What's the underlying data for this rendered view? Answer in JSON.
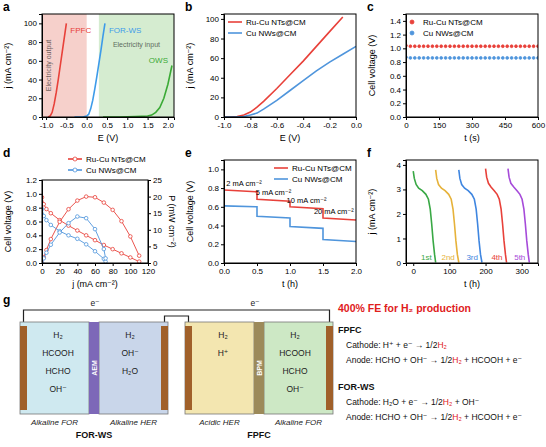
{
  "chart_data": [
    {
      "type": "line",
      "panel": "a",
      "x_label": "E (V)",
      "y_label": "j (mA cm⁻²)",
      "xlim": [
        -1.1,
        2.15
      ],
      "ylim": [
        0,
        110
      ],
      "xticks": [
        {
          "value": -1,
          "label": "-1.0"
        },
        -0.5,
        {
          "value": 0,
          "label": "0.0"
        },
        0.5,
        {
          "value": 1,
          "label": "1.0"
        },
        1.5,
        {
          "value": 2,
          "label": "2.0"
        }
      ],
      "yticks": [
        0,
        20,
        40,
        60,
        80,
        100
      ],
      "regions": [
        {
          "label": "Electricity output",
          "x": [
            -1.1,
            0.0
          ],
          "color": "#f6d0cb"
        },
        {
          "label": "Electricity input",
          "x": [
            0.3,
            2.15
          ],
          "color": "#d5ecd0"
        }
      ],
      "series": [
        {
          "name": "FPFC",
          "color": "#e8413a",
          "x": [
            -0.95,
            -0.9,
            -0.85,
            -0.8,
            -0.75,
            -0.7,
            -0.65,
            -0.6,
            -0.55,
            -0.5
          ],
          "values": [
            0,
            1,
            5,
            14,
            26,
            40,
            55,
            70,
            85,
            100
          ]
        },
        {
          "name": "FOR-WS",
          "color": "#3d9be9",
          "x": [
            -0.3,
            -0.1,
            0.0,
            0.05,
            0.1,
            0.15,
            0.2,
            0.25,
            0.3,
            0.35,
            0.4,
            0.45
          ],
          "values": [
            0,
            0,
            1,
            3,
            9,
            18,
            30,
            43,
            57,
            71,
            86,
            100
          ]
        },
        {
          "name": "OWS",
          "color": "#3aaa35",
          "x": [
            0.4,
            0.8,
            1.2,
            1.5,
            1.6,
            1.7,
            1.8,
            1.9,
            2.0,
            2.1
          ],
          "values": [
            0,
            0,
            0.5,
            1,
            2,
            5,
            10,
            20,
            35,
            55
          ]
        }
      ]
    },
    {
      "type": "line",
      "panel": "b",
      "x_label": "E (V)",
      "y_label": "j (mA cm⁻²)",
      "legend": "upper left",
      "xlim": [
        -1.0,
        0.0
      ],
      "ylim": [
        0,
        105
      ],
      "xticks": [
        {
          "value": -1,
          "label": "-1.0"
        },
        -0.8,
        -0.6,
        -0.4,
        -0.2,
        {
          "value": 0,
          "label": "0.0"
        }
      ],
      "yticks": [
        0,
        20,
        40,
        60,
        80,
        100
      ],
      "series": [
        {
          "name": "Ru-Cu NTs@CM",
          "color": "#e8413a",
          "x": [
            -1.0,
            -0.95,
            -0.9,
            -0.85,
            -0.8,
            -0.75,
            -0.7,
            -0.6,
            -0.5,
            -0.4,
            -0.3,
            -0.2,
            -0.1
          ],
          "values": [
            0,
            0,
            0.5,
            2,
            5,
            10,
            16,
            29,
            43,
            57,
            72,
            87,
            102
          ]
        },
        {
          "name": "Cu NWs@CM",
          "color": "#4f95dc",
          "x": [
            -1.0,
            -0.9,
            -0.85,
            -0.8,
            -0.75,
            -0.7,
            -0.6,
            -0.5,
            -0.4,
            -0.3,
            -0.2,
            -0.1,
            0.0
          ],
          "values": [
            0,
            0,
            0.5,
            2,
            4,
            8,
            17,
            27,
            37,
            47,
            56,
            64,
            72
          ]
        }
      ]
    },
    {
      "type": "scatter",
      "panel": "c",
      "x_label": "t (s)",
      "y_label": "Cell voltage (V)",
      "legend": "upper left",
      "xlim": [
        0,
        600
      ],
      "ylim": [
        0,
        1.5
      ],
      "xticks": [
        0,
        150,
        300,
        450,
        600
      ],
      "yticks": [
        {
          "value": 0,
          "label": "0.0"
        },
        0.2,
        0.4,
        0.6,
        0.8,
        {
          "value": 1,
          "label": "1.0"
        },
        1.2,
        1.4
      ],
      "series": [
        {
          "name": "Ru-Cu NTs@CM",
          "color": "#e8413a",
          "marker": "dot",
          "x": [
            0,
            20,
            40,
            60,
            80,
            100,
            120,
            140,
            160,
            180,
            200,
            220,
            240,
            260,
            280,
            300,
            320,
            340,
            360,
            380,
            400,
            420,
            440,
            460,
            480,
            500,
            520,
            540,
            560,
            580,
            600
          ],
          "values": [
            1.04,
            1.03,
            1.03,
            1.03,
            1.03,
            1.03,
            1.03,
            1.03,
            1.03,
            1.03,
            1.03,
            1.03,
            1.03,
            1.03,
            1.03,
            1.03,
            1.03,
            1.03,
            1.03,
            1.03,
            1.03,
            1.03,
            1.03,
            1.03,
            1.03,
            1.03,
            1.03,
            1.03,
            1.03,
            1.03,
            1.03
          ]
        },
        {
          "name": "Cu NWs@CM",
          "color": "#4f95dc",
          "marker": "dot",
          "x": [
            0,
            20,
            40,
            60,
            80,
            100,
            120,
            140,
            160,
            180,
            200,
            220,
            240,
            260,
            280,
            300,
            320,
            340,
            360,
            380,
            400,
            420,
            440,
            460,
            480,
            500,
            520,
            540,
            560,
            580,
            600
          ],
          "values": [
            0.87,
            0.86,
            0.86,
            0.86,
            0.86,
            0.86,
            0.86,
            0.86,
            0.86,
            0.86,
            0.86,
            0.86,
            0.86,
            0.86,
            0.86,
            0.86,
            0.86,
            0.86,
            0.86,
            0.86,
            0.86,
            0.86,
            0.86,
            0.86,
            0.86,
            0.86,
            0.86,
            0.86,
            0.86,
            0.86,
            0.86
          ]
        }
      ]
    },
    {
      "type": "line",
      "panel": "d",
      "x_label": "j (mA cm⁻²)",
      "y_label": "Cell voltage (V)",
      "y2_label": "P (mW cm⁻²)",
      "legend": "top",
      "xlim": [
        0,
        120
      ],
      "ylim": [
        0,
        1.2
      ],
      "y2lim": [
        0,
        25
      ],
      "xticks": [
        0,
        20,
        40,
        60,
        80,
        100,
        120
      ],
      "yticks": [
        {
          "value": 0,
          "label": "0.0"
        },
        0.2,
        0.4,
        0.6,
        0.8,
        {
          "value": 1,
          "label": "1.0"
        },
        1.2
      ],
      "y2ticks": [
        0,
        5,
        10,
        15,
        20,
        25
      ],
      "series": [
        {
          "name": "Ru-Cu NTs@CM",
          "color": "#e8413a",
          "marker": "circle",
          "x": [
            0,
            2,
            5,
            10,
            20,
            30,
            40,
            50,
            60,
            70,
            80,
            90,
            100,
            110
          ],
          "values": [
            0.95,
            0.85,
            0.78,
            0.72,
            0.62,
            0.54,
            0.47,
            0.4,
            0.33,
            0.26,
            0.2,
            0.14,
            0.08,
            0.02
          ],
          "power": [
            0,
            1.7,
            3.9,
            7.2,
            12.4,
            16.2,
            18.8,
            20.0,
            19.8,
            18.2,
            16.0,
            12.6,
            8.0,
            2.2
          ]
        },
        {
          "name": "Cu NWs@CM",
          "color": "#4f95dc",
          "marker": "circle",
          "x": [
            0,
            2,
            5,
            10,
            20,
            30,
            40,
            50,
            60,
            70,
            72
          ],
          "values": [
            0.78,
            0.68,
            0.62,
            0.55,
            0.46,
            0.4,
            0.35,
            0.27,
            0.17,
            0.06,
            0.02
          ],
          "power": [
            0,
            1.4,
            3.1,
            5.5,
            9.2,
            12.0,
            14.0,
            13.5,
            10.2,
            4.2,
            1.4
          ]
        }
      ]
    },
    {
      "type": "line",
      "panel": "e",
      "x_label": "t (h)",
      "y_label": "Cell voltage (V)",
      "legend": "upper right",
      "xlim": [
        0,
        2.0
      ],
      "ylim": [
        0,
        1.1
      ],
      "xticks": [
        {
          "value": 0,
          "label": "0.0"
        },
        0.5,
        {
          "value": 1,
          "label": "1.0"
        },
        1.5,
        {
          "value": 2,
          "label": "2.0"
        }
      ],
      "yticks": [
        {
          "value": 0,
          "label": "0.0"
        },
        0.2,
        0.4,
        0.6,
        0.8,
        {
          "value": 1,
          "label": "1.0"
        }
      ],
      "annotations": [
        "2 mA cm⁻²",
        "5 mA cm⁻²",
        "10 mA cm⁻²",
        "20 mA cm⁻²"
      ],
      "series": [
        {
          "name": "Ru-Cu NTs@CM",
          "color": "#e8413a",
          "line_style": "solid",
          "x": [
            0,
            0.5,
            0.5,
            1.0,
            1.0,
            1.5,
            1.5,
            2.0
          ],
          "values": [
            0.78,
            0.76,
            0.68,
            0.66,
            0.6,
            0.58,
            0.48,
            0.46
          ]
        },
        {
          "name": "Cu NWs@CM",
          "color": "#4f95dc",
          "line_style": "solid",
          "x": [
            0,
            0.5,
            0.5,
            1.0,
            1.0,
            1.5,
            1.5,
            2.0
          ],
          "values": [
            0.61,
            0.6,
            0.5,
            0.48,
            0.39,
            0.37,
            0.25,
            0.23
          ]
        }
      ]
    },
    {
      "type": "line",
      "panel": "f",
      "x_label": "t (h)",
      "y_label": "j (mA cm⁻²)",
      "xlim": [
        -20,
        345
      ],
      "ylim": [
        0,
        4.2
      ],
      "xticks": [
        0,
        100,
        200,
        300
      ],
      "yticks": [
        0,
        1,
        2,
        3,
        4
      ],
      "series": [
        {
          "name": "1st",
          "color": "#39a845",
          "x": [
            0,
            3,
            8,
            15,
            25,
            35,
            42,
            47,
            51,
            55,
            59,
            62
          ],
          "values": [
            3.75,
            3.45,
            3.2,
            3.05,
            2.95,
            2.8,
            2.6,
            2.2,
            1.6,
            0.9,
            0.35,
            0.02
          ]
        },
        {
          "name": "2nd",
          "color": "#e6b23a",
          "x": [
            62,
            65,
            70,
            78,
            88,
            98,
            105,
            110,
            114,
            118,
            122,
            126
          ],
          "values": [
            3.8,
            3.45,
            3.2,
            3.05,
            2.95,
            2.8,
            2.6,
            2.2,
            1.6,
            0.9,
            0.35,
            0.02
          ]
        },
        {
          "name": "3rd",
          "color": "#3f86e0",
          "x": [
            126,
            129,
            134,
            142,
            152,
            162,
            169,
            174,
            178,
            182,
            186,
            190
          ],
          "values": [
            3.8,
            3.45,
            3.2,
            3.05,
            2.95,
            2.8,
            2.6,
            2.2,
            1.6,
            0.9,
            0.35,
            0.02
          ]
        },
        {
          "name": "4th",
          "color": "#e8413a",
          "x": [
            200,
            203,
            208,
            215,
            224,
            232,
            238,
            243,
            247,
            251,
            255,
            258
          ],
          "values": [
            3.85,
            3.5,
            3.25,
            3.1,
            2.95,
            2.8,
            2.6,
            2.2,
            1.6,
            0.9,
            0.35,
            0.02
          ]
        },
        {
          "name": "5th",
          "color": "#a64bd9",
          "x": [
            262,
            265,
            270,
            278,
            287,
            295,
            301,
            306,
            310,
            314,
            318,
            321
          ],
          "values": [
            3.85,
            3.5,
            3.25,
            3.1,
            2.95,
            2.8,
            2.6,
            2.2,
            1.6,
            0.9,
            0.35,
            0.02
          ]
        }
      ]
    }
  ],
  "diagram": {
    "panel": "g",
    "cells": [
      {
        "name": "FOR-WS",
        "membrane": {
          "label": "AEM",
          "color": "#7d68b8"
        },
        "compartments": [
          {
            "label": "Alkaline FOR",
            "color": "#cfe9f0",
            "species": [
              "H₂",
              "HCOOH",
              "HCHO",
              "OH⁻"
            ]
          },
          {
            "label": "Alkaline HER",
            "color": "#c9d6ea",
            "species": [
              "H₂",
              "OH⁻",
              "H₂O"
            ]
          }
        ]
      },
      {
        "name": "FPFC",
        "membrane": {
          "label": "BPM",
          "color": "#9c8a5a"
        },
        "compartments": [
          {
            "label": "Acidic HER",
            "color": "#f3e6b0",
            "species": [
              "H₂",
              "H⁺"
            ]
          },
          {
            "label": "Alkaline FOR",
            "color": "#cde8c5",
            "species": [
              "H₂",
              "HCOOH",
              "HCHO",
              "OH⁻"
            ]
          }
        ]
      }
    ],
    "electrons": [
      "e⁻",
      "e⁻"
    ],
    "summary": {
      "title": "400% FE for H₂ production",
      "sections": [
        {
          "name": "FPFC",
          "equations": [
            [
              "Cathode: H⁺ + e⁻ → 1/2",
              "H₂"
            ],
            [
              "Anode: HCHO + OH⁻ → 1/2",
              "H₂",
              " + HCOOH + e⁻"
            ]
          ]
        },
        {
          "name": "FOR-WS",
          "equations": [
            [
              "Cathode: H₂O + e⁻ → 1/2",
              "H₂",
              " + OH⁻"
            ],
            [
              "Anode: HCHO + OH⁻ → 1/2",
              "H₂",
              " + HCOOH + e⁻"
            ]
          ]
        }
      ]
    }
  }
}
